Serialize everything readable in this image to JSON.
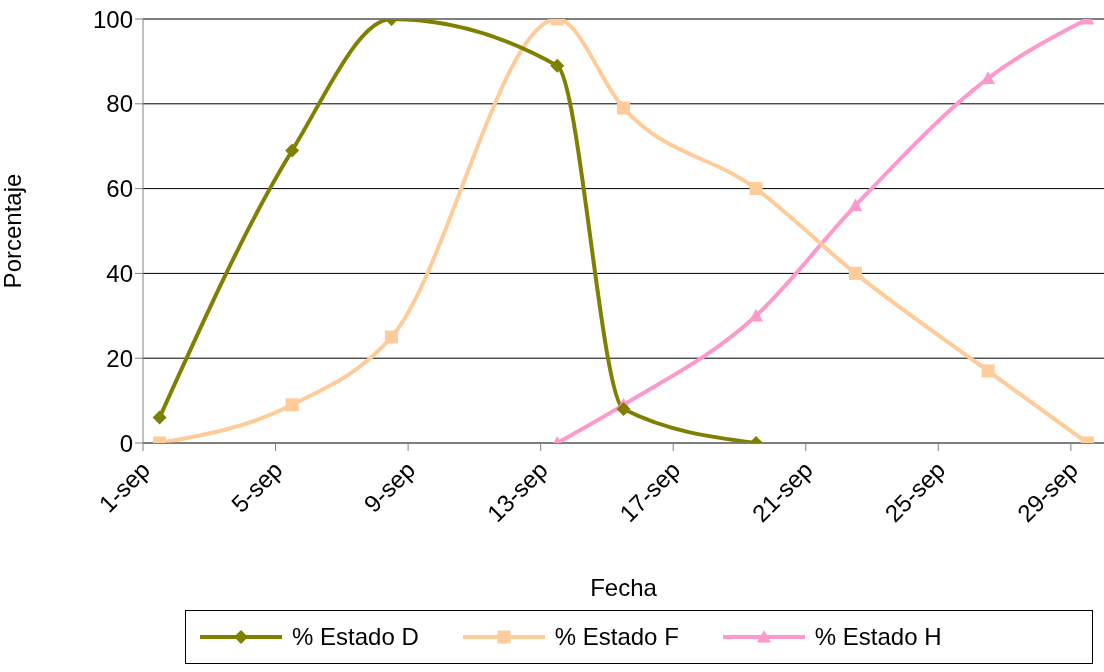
{
  "chart_data": {
    "type": "line",
    "xlabel": "Fecha",
    "ylabel": "Porcentaje",
    "xlim": [
      "--09-01T00:00",
      "--09-30T00:00"
    ],
    "xticks": [
      {
        "value": "--09-01",
        "label": "1-sep"
      },
      {
        "value": "--09-05",
        "label": "5-sep"
      },
      {
        "value": "--09-09",
        "label": "9-sep"
      },
      {
        "value": "--09-13",
        "label": "13-sep"
      },
      {
        "value": "--09-17",
        "label": "17-sep"
      },
      {
        "value": "--09-21",
        "label": "21-sep"
      },
      {
        "value": "--09-25",
        "label": "25-sep"
      },
      {
        "value": "--09-29",
        "label": "29-sep"
      }
    ],
    "ylim": [
      0,
      100
    ],
    "yticks": [
      0,
      20,
      40,
      60,
      80,
      100
    ],
    "grid": "y",
    "legend": "bottom",
    "series": [
      {
        "name": "% Estado D",
        "color": "#808000",
        "marker": "diamond",
        "x": [
          "--09-01T12:00",
          "--09-05T12:00",
          "--09-08T12:00",
          "--09-13T12:00",
          "--09-15T12:00",
          "--09-19T12:00"
        ],
        "values": [
          6,
          69,
          100,
          89,
          8,
          0
        ]
      },
      {
        "name": "% Estado F",
        "color": "#ffcc99",
        "marker": "square",
        "x": [
          "--09-01T12:00",
          "--09-05T12:00",
          "--09-08T12:00",
          "--09-13T12:00",
          "--09-15T12:00",
          "--09-19T12:00",
          "--09-22T12:00",
          "--09-26T12:00",
          "--09-29T12:00"
        ],
        "values": [
          0,
          9,
          25,
          100,
          79,
          60,
          40,
          17,
          0
        ]
      },
      {
        "name": "% Estado H",
        "color": "#ff99cc",
        "marker": "triangle",
        "x": [
          "--09-13T12:00",
          "--09-15T12:00",
          "--09-19T12:00",
          "--09-22T12:00",
          "--09-26T12:00",
          "--09-29T12:00"
        ],
        "values": [
          0,
          9,
          30,
          56,
          86,
          100
        ]
      }
    ]
  }
}
